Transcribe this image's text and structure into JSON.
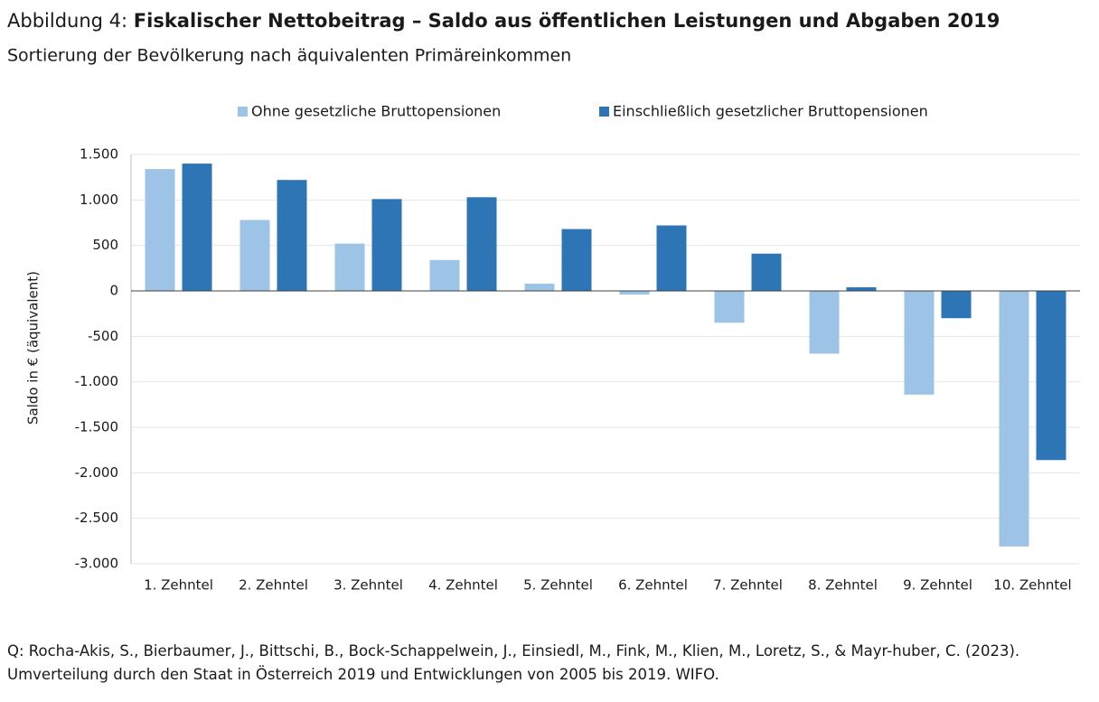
{
  "chart_data": {
    "type": "bar",
    "figure_label": "Abbildung 4:",
    "title": "Fiskalischer Nettobeitrag – Saldo aus öffentlichen Leistungen und Abgaben 2019",
    "subtitle": "Sortierung der Bevölkerung nach äquivalenten Primäreinkommen",
    "y_label": "Saldo in € (äquivalent)",
    "categories": [
      "1. Zehntel",
      "2. Zehntel",
      "3. Zehntel",
      "4. Zehntel",
      "5. Zehntel",
      "6. Zehntel",
      "7. Zehntel",
      "8. Zehntel",
      "9. Zehntel",
      "10. Zehntel"
    ],
    "series": [
      {
        "name": "Ohne gesetzliche Bruttopensionen",
        "color": "#9dc3e6",
        "values": [
          1340,
          780,
          520,
          340,
          80,
          -40,
          -350,
          -690,
          -1140,
          -2810
        ]
      },
      {
        "name": "Einschließlich gesetzlicher Bruttopensionen",
        "color": "#2e75b6",
        "values": [
          1400,
          1220,
          1010,
          1030,
          680,
          720,
          410,
          40,
          -300,
          -1860
        ]
      }
    ],
    "ylim": [
      -3000,
      1500
    ],
    "yticks": [
      {
        "value": 1500,
        "label": "1.500"
      },
      {
        "value": 1000,
        "label": "1.000"
      },
      500,
      0,
      -500,
      {
        "value": -1000,
        "label": "-1.000"
      },
      {
        "value": -1500,
        "label": "-1.500"
      },
      {
        "value": -2000,
        "label": "-2.000"
      },
      {
        "value": -2500,
        "label": "-2.500"
      },
      {
        "value": -3000,
        "label": "-3.000"
      }
    ],
    "grid": true,
    "legend": "top",
    "source": "Q: Rocha-Akis, S., Bierbaumer, J., Bittschi, B., Bock-Schappelwein, J., Einsiedl, M., Fink, M., Klien, M., Loretz, S., & Mayr-huber, C. (2023). Umverteilung durch den Staat in Österreich 2019 und Entwicklungen von 2005 bis 2019. WIFO."
  }
}
